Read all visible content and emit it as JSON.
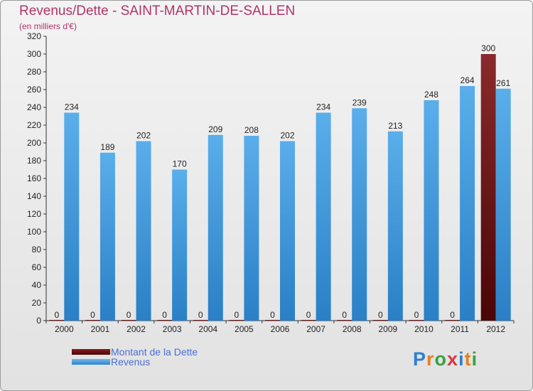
{
  "chart_data": {
    "type": "bar",
    "title": "Revenus/Dette - SAINT-MARTIN-DE-SALLEN",
    "subtitle": "(en milliers d'€)",
    "categories": [
      "2000",
      "2001",
      "2002",
      "2003",
      "2004",
      "2005",
      "2006",
      "2007",
      "2008",
      "2009",
      "2010",
      "2011",
      "2012"
    ],
    "series": [
      {
        "name": "Montant de la Dette",
        "color": "#6b0f10",
        "values": [
          0,
          0,
          0,
          0,
          0,
          0,
          0,
          0,
          0,
          0,
          0,
          0,
          300
        ]
      },
      {
        "name": "Revenus",
        "color": "#4fa3e6",
        "values": [
          234,
          189,
          202,
          170,
          209,
          208,
          202,
          234,
          239,
          213,
          248,
          264,
          261
        ]
      }
    ],
    "ylim": [
      0,
      320
    ],
    "yticks": [
      0,
      20,
      40,
      60,
      80,
      100,
      120,
      140,
      160,
      180,
      200,
      220,
      240,
      260,
      280,
      300,
      320
    ],
    "grid": false,
    "legend": "bottom-left"
  },
  "legend": {
    "debt_label": "Montant de la Dette",
    "revenue_label": "Revenus"
  },
  "brand": {
    "letters": [
      "P",
      "r",
      "o",
      "x",
      "i",
      "t",
      "i"
    ],
    "colors": [
      "#2f7fd0",
      "#e8801a",
      "#3aa040",
      "#d63a3a",
      "#2f7fd0",
      "#e8801a",
      "#3aa040"
    ]
  }
}
